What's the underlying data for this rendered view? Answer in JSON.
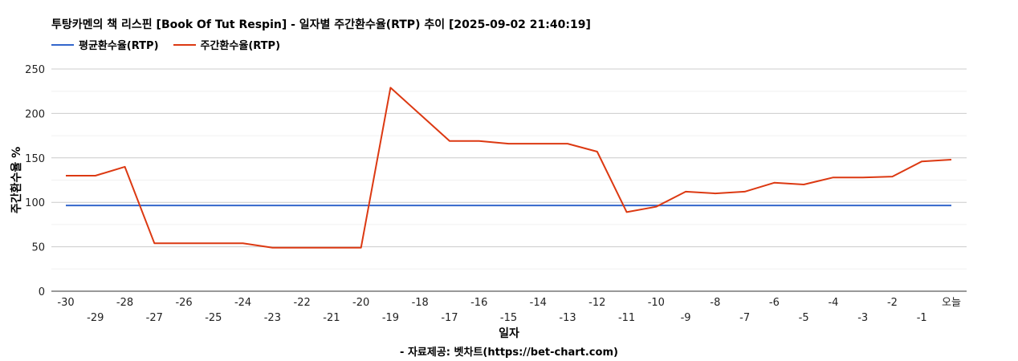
{
  "chart_data": {
    "type": "line",
    "title": "투탕카멘의 책 리스핀 [Book Of Tut Respin] - 일자별 주간환수율(RTP) 추이 [2025-09-02 21:40:19]",
    "xlabel": "일자",
    "ylabel": "주간환수율 %",
    "ylim": [
      0,
      250
    ],
    "yticks": [
      0,
      50,
      100,
      150,
      200,
      250
    ],
    "categories": [
      "-30",
      "-29",
      "-28",
      "-27",
      "-26",
      "-25",
      "-24",
      "-23",
      "-22",
      "-21",
      "-20",
      "-19",
      "-18",
      "-17",
      "-16",
      "-15",
      "-14",
      "-13",
      "-12",
      "-11",
      "-10",
      "-9",
      "-8",
      "-7",
      "-6",
      "-5",
      "-4",
      "-3",
      "-2",
      "-1",
      "오늘"
    ],
    "series": [
      {
        "name": "평균환수율(RTP)",
        "color": "#3366cc",
        "values": [
          96.5,
          96.5,
          96.5,
          96.5,
          96.5,
          96.5,
          96.5,
          96.5,
          96.5,
          96.5,
          96.5,
          96.5,
          96.5,
          96.5,
          96.5,
          96.5,
          96.5,
          96.5,
          96.5,
          96.5,
          96.5,
          96.5,
          96.5,
          96.5,
          96.5,
          96.5,
          96.5,
          96.5,
          96.5,
          96.5,
          96.5
        ]
      },
      {
        "name": "주간환수율(RTP)",
        "color": "#dc3912",
        "values": [
          130,
          130,
          140,
          54,
          54,
          54,
          54,
          49,
          49,
          49,
          49,
          229,
          199,
          169,
          169,
          166,
          166,
          166,
          157,
          89,
          95,
          112,
          110,
          112,
          122,
          120,
          128,
          128,
          129,
          146,
          148
        ]
      }
    ],
    "grid": true,
    "legend_position": "top-left",
    "source": "- 자료제공: 벳차트(https://bet-chart.com)"
  }
}
